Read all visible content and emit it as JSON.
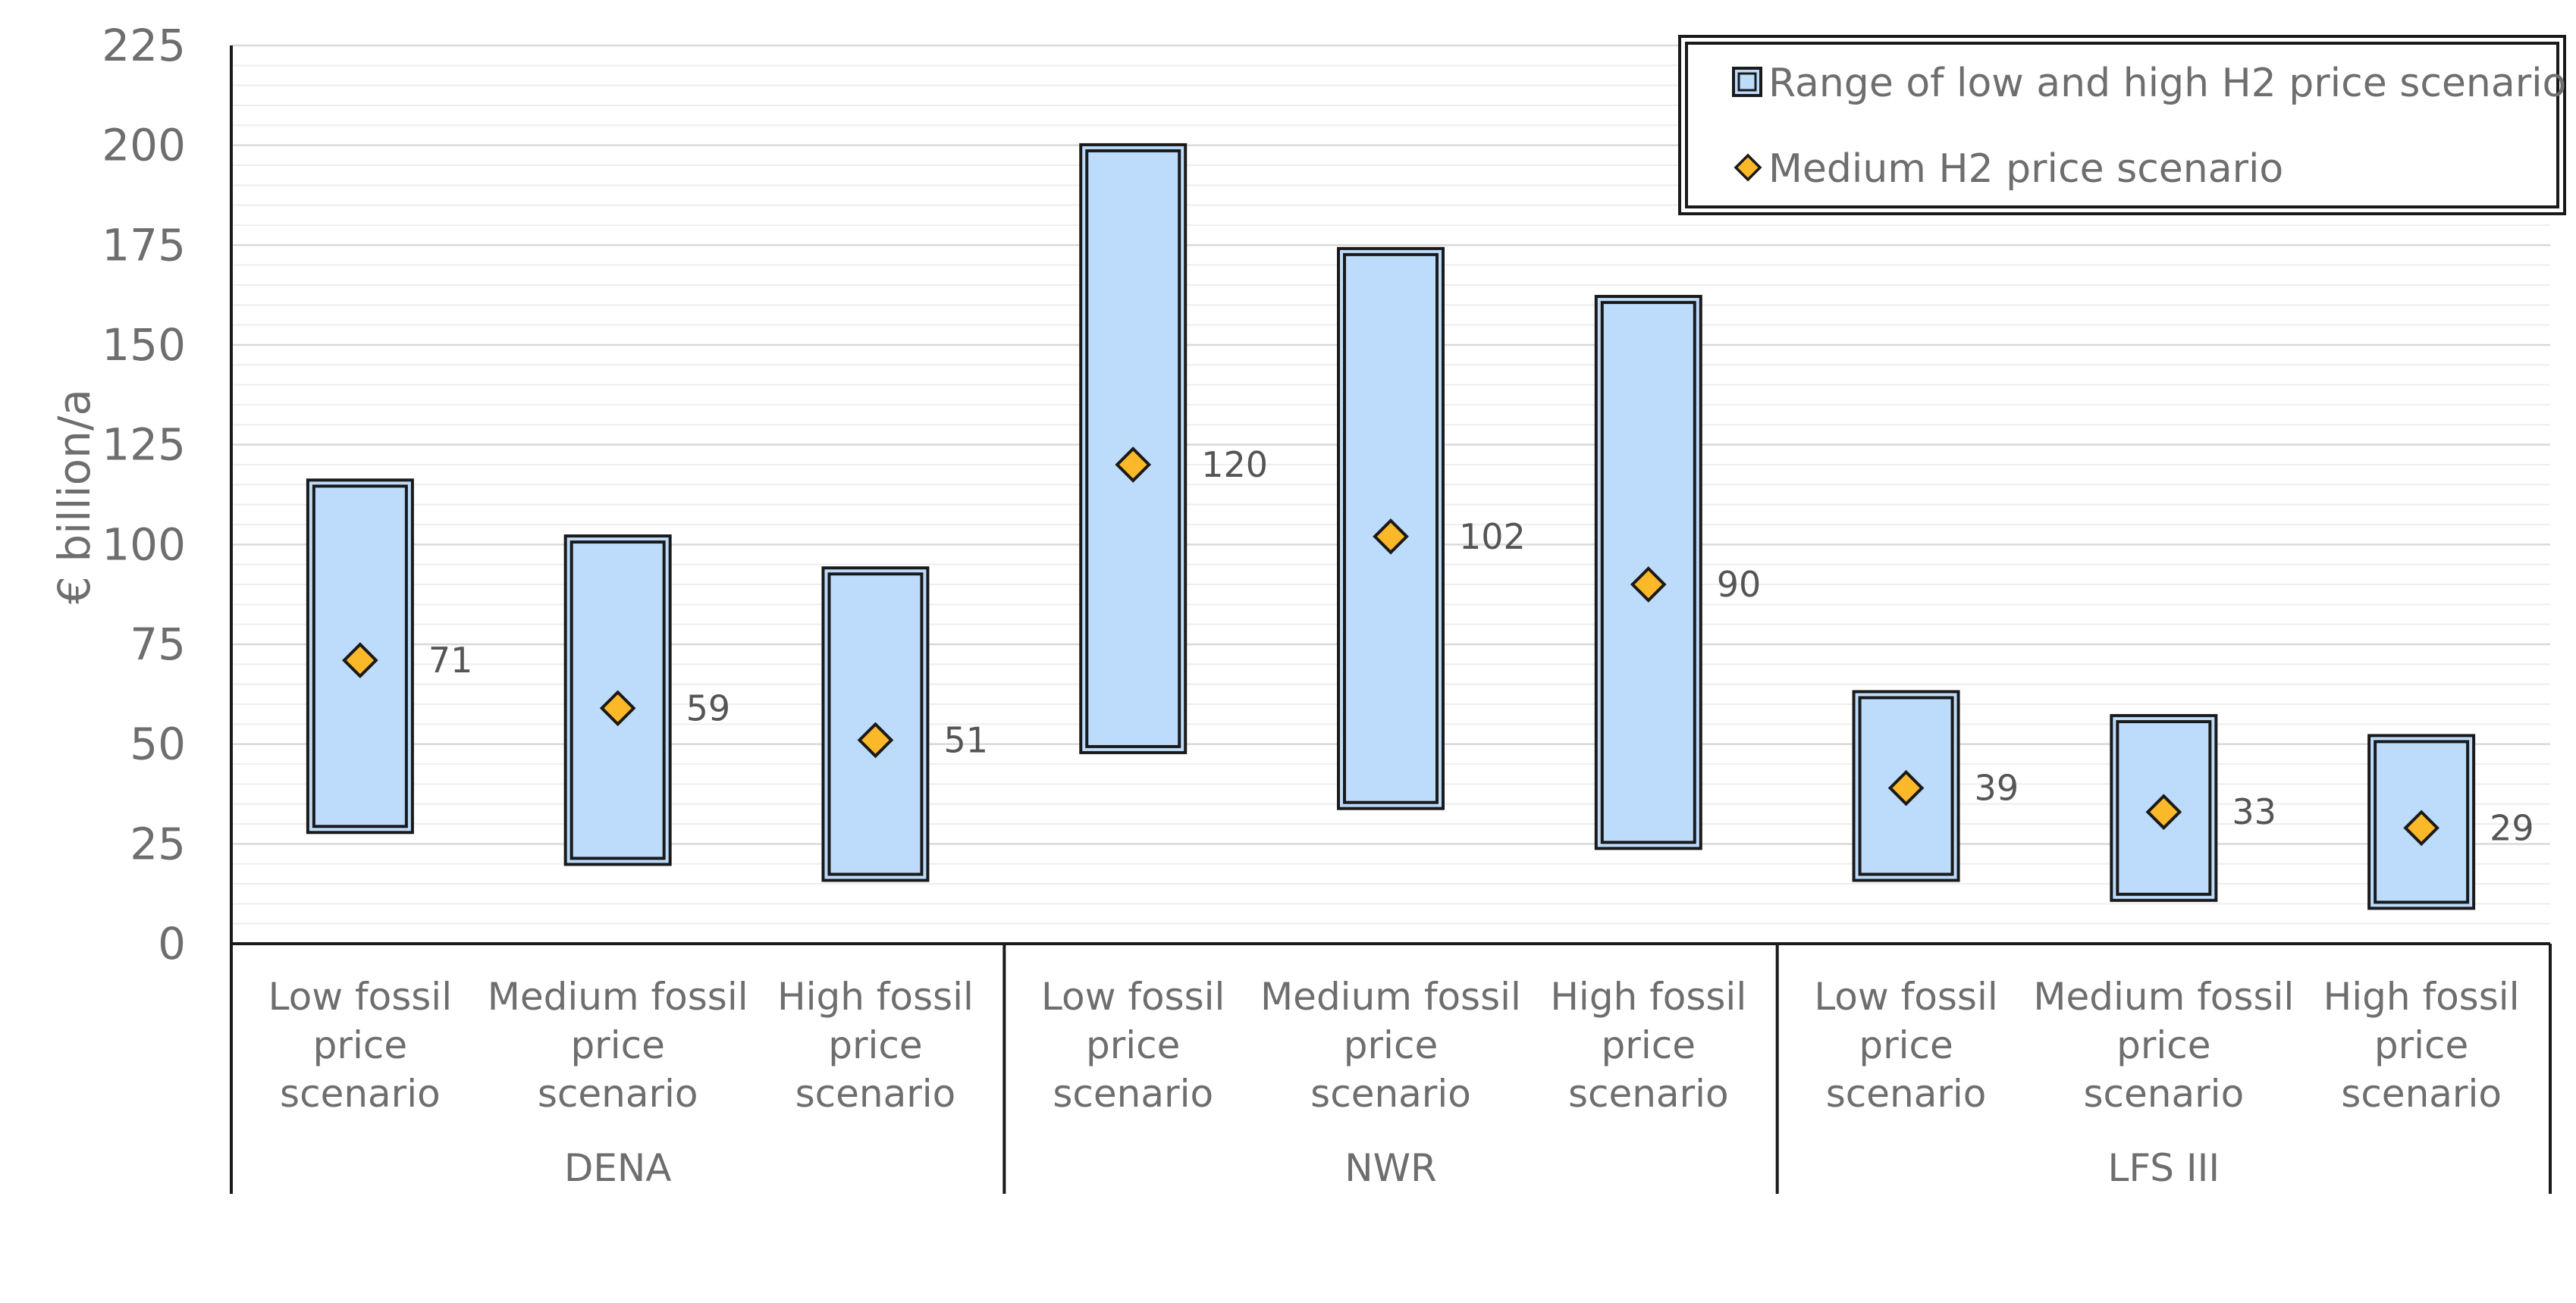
{
  "chart_data": {
    "type": "bar",
    "ylabel": "€ billion/a",
    "ylim": [
      0,
      225
    ],
    "yticks": [
      0,
      25,
      50,
      75,
      100,
      125,
      150,
      175,
      200,
      225
    ],
    "grid": true,
    "legend_position": "top-right",
    "legend": [
      {
        "label": "Range of low and high H2 price scenario",
        "symbol": "range-box"
      },
      {
        "label": "Medium H2 price scenario",
        "symbol": "diamond"
      }
    ],
    "groups": [
      {
        "name": "DENA",
        "categories": [
          {
            "label": [
              "Low fossil",
              "price",
              "scenario"
            ],
            "low": 29,
            "high": 115,
            "medium": 71
          },
          {
            "label": [
              "Medium fossil",
              "price",
              "scenario"
            ],
            "low": 21,
            "high": 101,
            "medium": 59
          },
          {
            "label": [
              "High fossil",
              "price",
              "scenario"
            ],
            "low": 17,
            "high": 93,
            "medium": 51
          }
        ]
      },
      {
        "name": "NWR",
        "categories": [
          {
            "label": [
              "Low fossil",
              "price",
              "scenario"
            ],
            "low": 49,
            "high": 199,
            "medium": 120
          },
          {
            "label": [
              "Medium fossil",
              "price",
              "scenario"
            ],
            "low": 35,
            "high": 173,
            "medium": 102
          },
          {
            "label": [
              "High fossil",
              "price",
              "scenario"
            ],
            "low": 25,
            "high": 161,
            "medium": 90
          }
        ]
      },
      {
        "name": "LFS III",
        "categories": [
          {
            "label": [
              "Low fossil",
              "price",
              "scenario"
            ],
            "low": 17,
            "high": 62,
            "medium": 39
          },
          {
            "label": [
              "Medium fossil",
              "price",
              "scenario"
            ],
            "low": 12,
            "high": 56,
            "medium": 33
          },
          {
            "label": [
              "High fossil",
              "price",
              "scenario"
            ],
            "low": 10,
            "high": 51,
            "medium": 29
          }
        ]
      }
    ],
    "colors": {
      "range_fill": "#bddcfb",
      "range_stroke": "#1a1a1a",
      "marker_fill": "#fbb829",
      "marker_stroke": "#1a1a1a",
      "axis": "#1a1a1a",
      "grid_major": "#d9d9d9",
      "grid_minor": "#eeeeee"
    }
  }
}
